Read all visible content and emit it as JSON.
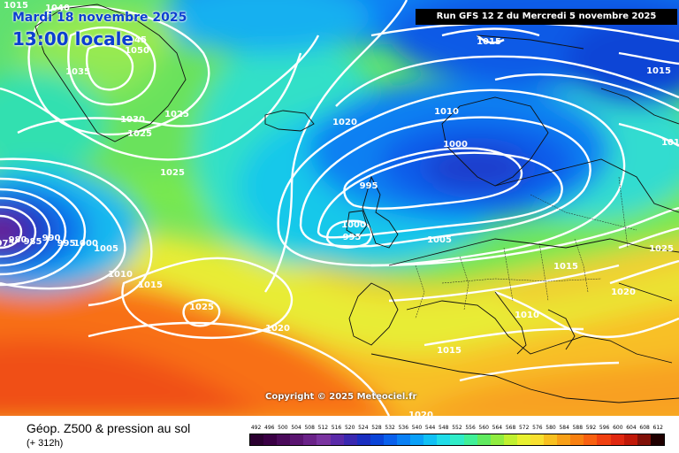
{
  "map": {
    "date": "Mardi 18 novembre 2025",
    "time": "13:00 locale",
    "run": "Run GFS 12 Z du Mercredi 5 novembre 2025",
    "copyright": "Copyright © 2025 Meteociel.fr",
    "isobars": [
      {
        "label": "1045"
      },
      {
        "label": "1050"
      },
      {
        "label": "1040"
      },
      {
        "label": "1035"
      },
      {
        "label": "1030"
      },
      {
        "label": "1025"
      },
      {
        "label": "1025"
      },
      {
        "label": "1025"
      },
      {
        "label": "1015"
      },
      {
        "label": "1015"
      },
      {
        "label": "1020"
      },
      {
        "label": "1010"
      },
      {
        "label": "1000"
      },
      {
        "label": "995"
      },
      {
        "label": "1000"
      },
      {
        "label": "995"
      },
      {
        "label": "1005"
      },
      {
        "label": "1015"
      },
      {
        "label": "1015"
      },
      {
        "label": "1025"
      },
      {
        "label": "1020"
      },
      {
        "label": "1010"
      },
      {
        "label": "1015"
      },
      {
        "label": "1020"
      },
      {
        "label": "990"
      },
      {
        "label": "985"
      },
      {
        "label": "980"
      },
      {
        "label": "975"
      },
      {
        "label": "995"
      },
      {
        "label": "1000"
      },
      {
        "label": "1005"
      },
      {
        "label": "1010"
      },
      {
        "label": "1015"
      },
      {
        "label": "1025"
      },
      {
        "label": "1020"
      },
      {
        "label": "1015"
      },
      {
        "label": "1020"
      }
    ]
  },
  "legend": {
    "title": "Géop. Z500 & pression au sol",
    "lead": "(+ 312h)",
    "scale": [
      {
        "label": "492",
        "color": "#2b0030"
      },
      {
        "label": "496",
        "color": "#3a0044"
      },
      {
        "label": "500",
        "color": "#4a0a5a"
      },
      {
        "label": "504",
        "color": "#5a1470"
      },
      {
        "label": "508",
        "color": "#6a2288"
      },
      {
        "label": "512",
        "color": "#7a34a0"
      },
      {
        "label": "516",
        "color": "#5a2aa8"
      },
      {
        "label": "520",
        "color": "#3a28b0"
      },
      {
        "label": "524",
        "color": "#1a2ec0"
      },
      {
        "label": "528",
        "color": "#0a44d8"
      },
      {
        "label": "532",
        "color": "#0a60ec"
      },
      {
        "label": "536",
        "color": "#0a80f4"
      },
      {
        "label": "540",
        "color": "#0aa0f8"
      },
      {
        "label": "544",
        "color": "#10c0f4"
      },
      {
        "label": "548",
        "color": "#20dce8"
      },
      {
        "label": "552",
        "color": "#30ecc8"
      },
      {
        "label": "556",
        "color": "#40f098"
      },
      {
        "label": "560",
        "color": "#60ea60"
      },
      {
        "label": "564",
        "color": "#90ec40"
      },
      {
        "label": "568",
        "color": "#c0f030"
      },
      {
        "label": "572",
        "color": "#e8f030"
      },
      {
        "label": "576",
        "color": "#f8e030"
      },
      {
        "label": "580",
        "color": "#f8c020"
      },
      {
        "label": "584",
        "color": "#f8a018"
      },
      {
        "label": "588",
        "color": "#f88010"
      },
      {
        "label": "592",
        "color": "#f86010"
      },
      {
        "label": "596",
        "color": "#f04010"
      },
      {
        "label": "600",
        "color": "#e02810"
      },
      {
        "label": "604",
        "color": "#c01808"
      },
      {
        "label": "608",
        "color": "#801008"
      },
      {
        "label": "612",
        "color": "#200000"
      }
    ]
  }
}
